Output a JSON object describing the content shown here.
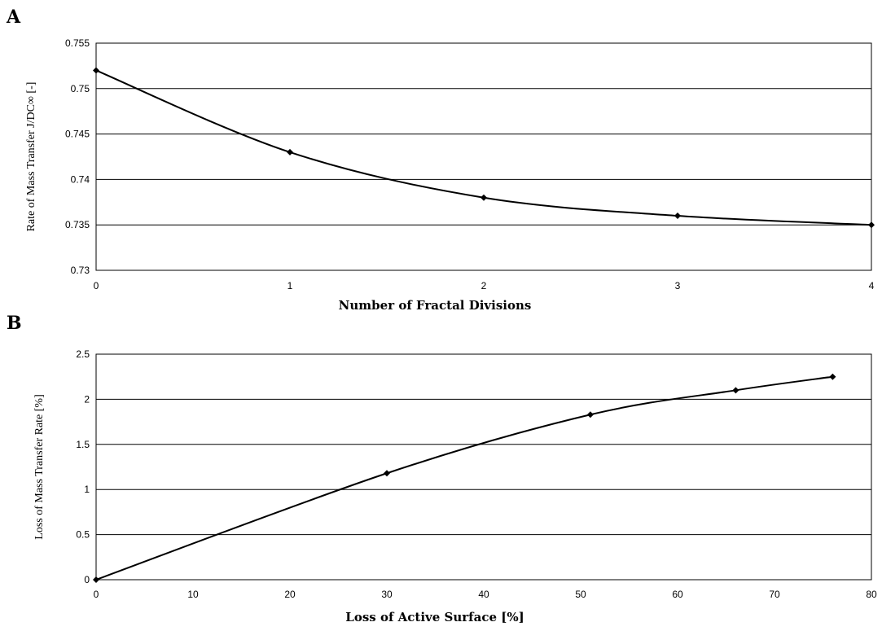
{
  "chart_data": [
    {
      "panel": "A",
      "type": "line",
      "x": [
        0,
        1,
        2,
        3,
        4
      ],
      "series": [
        {
          "values": [
            0.752,
            0.743,
            0.738,
            0.736,
            0.735
          ]
        }
      ],
      "xlabel": "Number of Fractal Divisions",
      "ylabel": "Rate of Mass Transfer J/DC∞ [-]",
      "xlim": [
        0,
        4
      ],
      "ylim": [
        0.73,
        0.755
      ],
      "xticks": [
        "0",
        "1",
        "2",
        "3",
        "4"
      ],
      "yticks": [
        "0.73",
        "0.735",
        "0.74",
        "0.745",
        "0.75",
        "0.755"
      ],
      "grid": "horizontal",
      "marker": "diamond",
      "color": "#000000"
    },
    {
      "panel": "B",
      "type": "line",
      "x": [
        0,
        30,
        51,
        66,
        76
      ],
      "series": [
        {
          "values": [
            0,
            1.18,
            1.83,
            2.1,
            2.25
          ]
        }
      ],
      "xlabel": "Loss of Active Surface [%]",
      "ylabel": "Loss of Mass Transfer Rate [%]",
      "xlim": [
        0,
        80
      ],
      "ylim": [
        0,
        2.5
      ],
      "xticks": [
        "0",
        "10",
        "20",
        "30",
        "40",
        "50",
        "60",
        "70",
        "80"
      ],
      "yticks": [
        "0",
        "0.5",
        "1",
        "1.5",
        "2",
        "2.5"
      ],
      "grid": "horizontal",
      "marker": "diamond",
      "color": "#000000"
    }
  ]
}
